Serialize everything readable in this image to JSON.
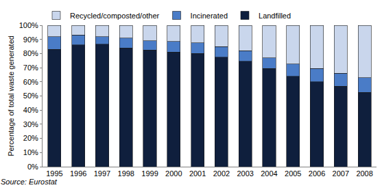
{
  "chart_data": {
    "type": "bar",
    "stacked": true,
    "y_label": "Percentage of total waste generated",
    "annotations": [
      "Source: Eurostat"
    ],
    "categories": [
      "1995",
      "1996",
      "1997",
      "1998",
      "1999",
      "2000",
      "2001",
      "2002",
      "2003",
      "2004",
      "2005",
      "2006",
      "2007",
      "2008"
    ],
    "series": [
      {
        "name": "Landfilled",
        "color": "#0f1f3d",
        "values": [
          83,
          86,
          86.5,
          84,
          82.5,
          81,
          80,
          77.5,
          74.5,
          69.5,
          64,
          60,
          57,
          52.5
        ]
      },
      {
        "name": "Incinerated",
        "color": "#4a7cc7",
        "values": [
          9,
          7,
          5.5,
          7,
          6.5,
          7.5,
          7.5,
          7.5,
          7.5,
          7.5,
          8.5,
          9.5,
          9,
          10.5
        ]
      },
      {
        "name": "Recycled/composted/other",
        "color": "#c9d6ec",
        "values": [
          8,
          7,
          8,
          9,
          11,
          11.5,
          12.5,
          15,
          18,
          23,
          27.5,
          30.5,
          34,
          37
        ]
      }
    ],
    "ylim": [
      0,
      100
    ],
    "yticks": [
      {
        "value": 0,
        "label": "0%"
      },
      {
        "value": 10,
        "label": "10%"
      },
      {
        "value": 20,
        "label": "20%"
      },
      {
        "value": 30,
        "label": "30%"
      },
      {
        "value": 40,
        "label": "40%"
      },
      {
        "value": 50,
        "label": "50%"
      },
      {
        "value": 60,
        "label": "60%"
      },
      {
        "value": 70,
        "label": "70%"
      },
      {
        "value": 80,
        "label": "80%"
      },
      {
        "value": 90,
        "label": "90%"
      },
      {
        "value": 100,
        "label": "100%"
      }
    ],
    "grid": false,
    "legend": "top"
  }
}
